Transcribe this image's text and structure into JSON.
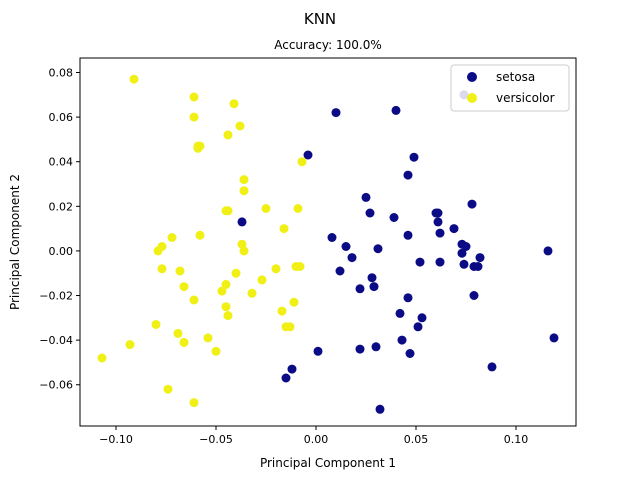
{
  "chart_data": {
    "type": "scatter",
    "title": "KNN",
    "subtitle": "Accuracy: 100.0%",
    "xlabel": "Principal Component 1",
    "ylabel": "Principal Component 2",
    "xlim": [
      -0.118,
      0.13
    ],
    "ylim": [
      -0.0785,
      0.0865
    ],
    "xticks": [
      -0.1,
      -0.05,
      0.0,
      0.05,
      0.1
    ],
    "xtick_labels": [
      "−0.10",
      "−0.05",
      "0.00",
      "0.05",
      "0.10"
    ],
    "yticks": [
      -0.06,
      -0.04,
      -0.02,
      0.0,
      0.02,
      0.04,
      0.06,
      0.08
    ],
    "ytick_labels": [
      "−0.06",
      "−0.04",
      "−0.02",
      "0.00",
      "0.02",
      "0.04",
      "0.06",
      "0.08"
    ],
    "grid": false,
    "legend_position": "top-right",
    "series": [
      {
        "name": "setosa",
        "color": "#0b0b85",
        "points": [
          [
            -0.037,
            0.013
          ],
          [
            -0.004,
            0.043
          ],
          [
            0.01,
            0.062
          ],
          [
            0.04,
            0.063
          ],
          [
            0.049,
            0.042
          ],
          [
            0.046,
            0.034
          ],
          [
            0.025,
            0.024
          ],
          [
            0.027,
            0.017
          ],
          [
            0.039,
            0.015
          ],
          [
            0.046,
            0.007
          ],
          [
            0.008,
            0.006
          ],
          [
            0.015,
            0.002
          ],
          [
            0.018,
            -0.003
          ],
          [
            0.012,
            -0.009
          ],
          [
            0.031,
            0.001
          ],
          [
            0.028,
            -0.012
          ],
          [
            0.022,
            -0.017
          ],
          [
            0.029,
            -0.016
          ],
          [
            0.046,
            -0.021
          ],
          [
            0.052,
            -0.005
          ],
          [
            0.06,
            0.017
          ],
          [
            0.061,
            0.013
          ],
          [
            0.062,
            0.008
          ],
          [
            0.061,
            0.017
          ],
          [
            0.069,
            0.01
          ],
          [
            0.073,
            0.003
          ],
          [
            0.075,
            0.002
          ],
          [
            0.073,
            -0.001
          ],
          [
            0.074,
            -0.006
          ],
          [
            0.079,
            -0.007
          ],
          [
            0.081,
            -0.007
          ],
          [
            0.082,
            -0.003
          ],
          [
            0.078,
            0.021
          ],
          [
            0.062,
            -0.005
          ],
          [
            0.079,
            -0.02
          ],
          [
            0.074,
            0.07
          ],
          [
            0.116,
            0.0
          ],
          [
            0.119,
            -0.039
          ],
          [
            0.088,
            -0.052
          ],
          [
            0.053,
            -0.03
          ],
          [
            0.042,
            -0.028
          ],
          [
            0.051,
            -0.034
          ],
          [
            0.043,
            -0.04
          ],
          [
            0.047,
            -0.046
          ],
          [
            0.022,
            -0.044
          ],
          [
            0.03,
            -0.043
          ],
          [
            0.001,
            -0.045
          ],
          [
            -0.015,
            -0.057
          ],
          [
            -0.012,
            -0.053
          ],
          [
            0.032,
            -0.071
          ]
        ]
      },
      {
        "name": "versicolor",
        "color": "#f0f017",
        "points": [
          [
            -0.091,
            0.077
          ],
          [
            -0.061,
            0.069
          ],
          [
            -0.061,
            0.06
          ],
          [
            -0.041,
            0.066
          ],
          [
            -0.044,
            0.052
          ],
          [
            -0.038,
            0.056
          ],
          [
            -0.058,
            0.047
          ],
          [
            -0.059,
            0.046
          ],
          [
            -0.007,
            0.04
          ],
          [
            -0.036,
            0.032
          ],
          [
            -0.036,
            0.027
          ],
          [
            -0.044,
            0.018
          ],
          [
            -0.045,
            0.018
          ],
          [
            -0.025,
            0.019
          ],
          [
            -0.009,
            0.019
          ],
          [
            -0.016,
            0.01
          ],
          [
            -0.058,
            0.007
          ],
          [
            -0.072,
            0.006
          ],
          [
            -0.077,
            0.002
          ],
          [
            -0.079,
            0.0
          ],
          [
            -0.037,
            0.003
          ],
          [
            -0.036,
            0.0
          ],
          [
            -0.04,
            -0.01
          ],
          [
            -0.01,
            -0.007
          ],
          [
            -0.008,
            -0.007
          ],
          [
            -0.02,
            -0.008
          ],
          [
            -0.027,
            -0.013
          ],
          [
            -0.077,
            -0.008
          ],
          [
            -0.068,
            -0.009
          ],
          [
            -0.066,
            -0.016
          ],
          [
            -0.061,
            -0.022
          ],
          [
            -0.045,
            -0.015
          ],
          [
            -0.047,
            -0.018
          ],
          [
            -0.032,
            -0.019
          ],
          [
            -0.011,
            -0.023
          ],
          [
            -0.045,
            -0.025
          ],
          [
            -0.017,
            -0.027
          ],
          [
            -0.044,
            -0.029
          ],
          [
            -0.015,
            -0.034
          ],
          [
            -0.013,
            -0.034
          ],
          [
            -0.08,
            -0.033
          ],
          [
            -0.069,
            -0.037
          ],
          [
            -0.054,
            -0.039
          ],
          [
            -0.066,
            -0.041
          ],
          [
            -0.05,
            -0.045
          ],
          [
            -0.093,
            -0.042
          ],
          [
            -0.107,
            -0.048
          ],
          [
            -0.074,
            -0.062
          ],
          [
            -0.061,
            -0.068
          ],
          [
            -0.059,
            0.047
          ]
        ]
      }
    ]
  }
}
